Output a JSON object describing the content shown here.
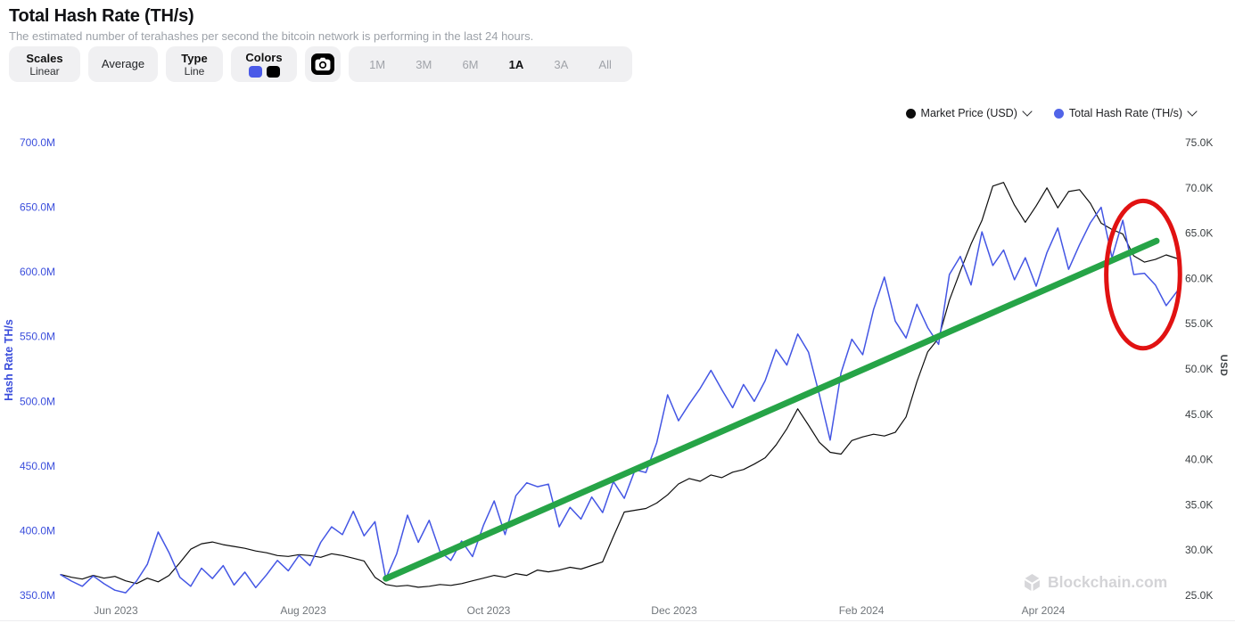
{
  "header": {
    "title": "Total Hash Rate (TH/s)",
    "subtitle": "The estimated number of terahashes per second the bitcoin network is performing in the last 24 hours."
  },
  "toolbar": {
    "scales": {
      "label": "Scales",
      "value": "Linear"
    },
    "average": {
      "label": "Average"
    },
    "type": {
      "label": "Type",
      "value": "Line"
    },
    "colors": {
      "label": "Colors",
      "swatches": [
        "#4A5AE8",
        "#000000"
      ]
    },
    "camera": {
      "icon": "camera-icon"
    },
    "ranges": {
      "options": [
        "1M",
        "3M",
        "6M",
        "1A",
        "3A",
        "All"
      ],
      "selected": "1A"
    }
  },
  "legend": [
    {
      "label": "Market Price (USD)",
      "color": "#0D0D0D"
    },
    {
      "label": "Total Hash Rate (TH/s)",
      "color": "#5164E8"
    }
  ],
  "watermark": {
    "text": "Blockchain.com",
    "icon": "blockchain-cube-icon"
  },
  "chart_data": {
    "type": "line",
    "background": "#FFFFFF",
    "grid": false,
    "legend_position": "top-right",
    "x_axis": {
      "tick_labels": [
        "Jun 2023",
        "Aug 2023",
        "Oct 2023",
        "Dec 2023",
        "Feb 2024",
        "Apr 2024"
      ],
      "tick_positions": [
        0.0495,
        0.2173,
        0.3834,
        0.5495,
        0.7173,
        0.8802
      ],
      "range_note": "mid-May 2023 to mid-May 2024, ~3.5-day samples"
    },
    "left_axis": {
      "title": "Hash Rate TH/s",
      "ticks": [
        "700.0M",
        "650.0M",
        "600.0M",
        "550.0M",
        "500.0M",
        "450.0M",
        "400.0M",
        "350.0M"
      ],
      "min": 350,
      "max": 700,
      "unit": "M TH/s",
      "color": "#3B4EDC"
    },
    "right_axis": {
      "title": "USD",
      "ticks": [
        "75.0K",
        "70.0K",
        "65.0K",
        "60.0K",
        "55.0K",
        "50.0K",
        "45.0K",
        "40.0K",
        "35.0K",
        "30.0K",
        "25.0K"
      ],
      "min": 25,
      "max": 75,
      "unit": "K USD",
      "color": "#3C4043"
    },
    "series": [
      {
        "name": "Market Price (USD)",
        "axis": "right",
        "color": "#0D0D0D",
        "stroke_width": 1.2,
        "values": [
          27.3,
          27.0,
          26.8,
          27.2,
          26.9,
          27.1,
          26.6,
          26.3,
          26.9,
          26.5,
          27.2,
          28.6,
          30.1,
          30.7,
          30.9,
          30.6,
          30.4,
          30.2,
          29.9,
          29.7,
          29.4,
          29.3,
          29.5,
          29.4,
          29.2,
          29.6,
          29.4,
          29.1,
          28.8,
          27.0,
          26.2,
          26.0,
          26.1,
          25.9,
          26.0,
          26.2,
          26.1,
          26.3,
          26.6,
          26.9,
          27.2,
          27.0,
          27.4,
          27.2,
          27.8,
          27.6,
          27.8,
          28.1,
          27.9,
          28.3,
          28.7,
          31.5,
          34.2,
          34.4,
          34.6,
          35.2,
          36.1,
          37.3,
          37.9,
          37.6,
          38.3,
          38.0,
          38.6,
          38.9,
          39.5,
          40.2,
          41.6,
          43.4,
          45.6,
          43.8,
          41.9,
          40.8,
          40.6,
          42.1,
          42.5,
          42.8,
          42.6,
          43.0,
          44.7,
          48.6,
          51.9,
          53.4,
          57.6,
          60.8,
          63.8,
          66.4,
          70.2,
          70.6,
          68.1,
          66.2,
          68.0,
          70.0,
          67.8,
          69.6,
          69.8,
          68.3,
          66.1,
          65.4,
          64.9,
          62.5,
          61.8,
          62.1,
          62.6,
          62.2
        ]
      },
      {
        "name": "Total Hash Rate (TH/s)",
        "axis": "left",
        "color": "#4456E4",
        "stroke_width": 1.5,
        "values": [
          366,
          361,
          357,
          365,
          359,
          354,
          352,
          361,
          374,
          399,
          383,
          364,
          357,
          371,
          363,
          373,
          358,
          368,
          356,
          366,
          377,
          369,
          381,
          373,
          391,
          403,
          397,
          415,
          396,
          407,
          363,
          382,
          412,
          391,
          408,
          384,
          377,
          392,
          380,
          404,
          423,
          397,
          427,
          437,
          434,
          436,
          403,
          418,
          409,
          426,
          414,
          438,
          425,
          447,
          445,
          468,
          505,
          485,
          498,
          510,
          524,
          509,
          495,
          513,
          500,
          516,
          540,
          528,
          552,
          538,
          505,
          470,
          522,
          548,
          536,
          571,
          596,
          562,
          549,
          575,
          557,
          544,
          598,
          612,
          590,
          631,
          605,
          617,
          594,
          611,
          589,
          615,
          634,
          602,
          621,
          638,
          650,
          611,
          640,
          598,
          599,
          590,
          574,
          585
        ]
      }
    ],
    "annotations": {
      "trendline": {
        "shape": "line",
        "color": "#26A447",
        "stroke_width": 7,
        "start": {
          "t": 0.2913,
          "hash_rate_m": 363
        },
        "end": {
          "t": 0.9816,
          "hash_rate_m": 624
        }
      },
      "highlight_ellipse": {
        "shape": "ellipse",
        "color": "#E11212",
        "stroke_width": 5,
        "center": {
          "t": 0.9696,
          "hash_rate_m": 598
        },
        "radius_t": 0.033,
        "radius_hash_rate_m": 57
      }
    }
  }
}
